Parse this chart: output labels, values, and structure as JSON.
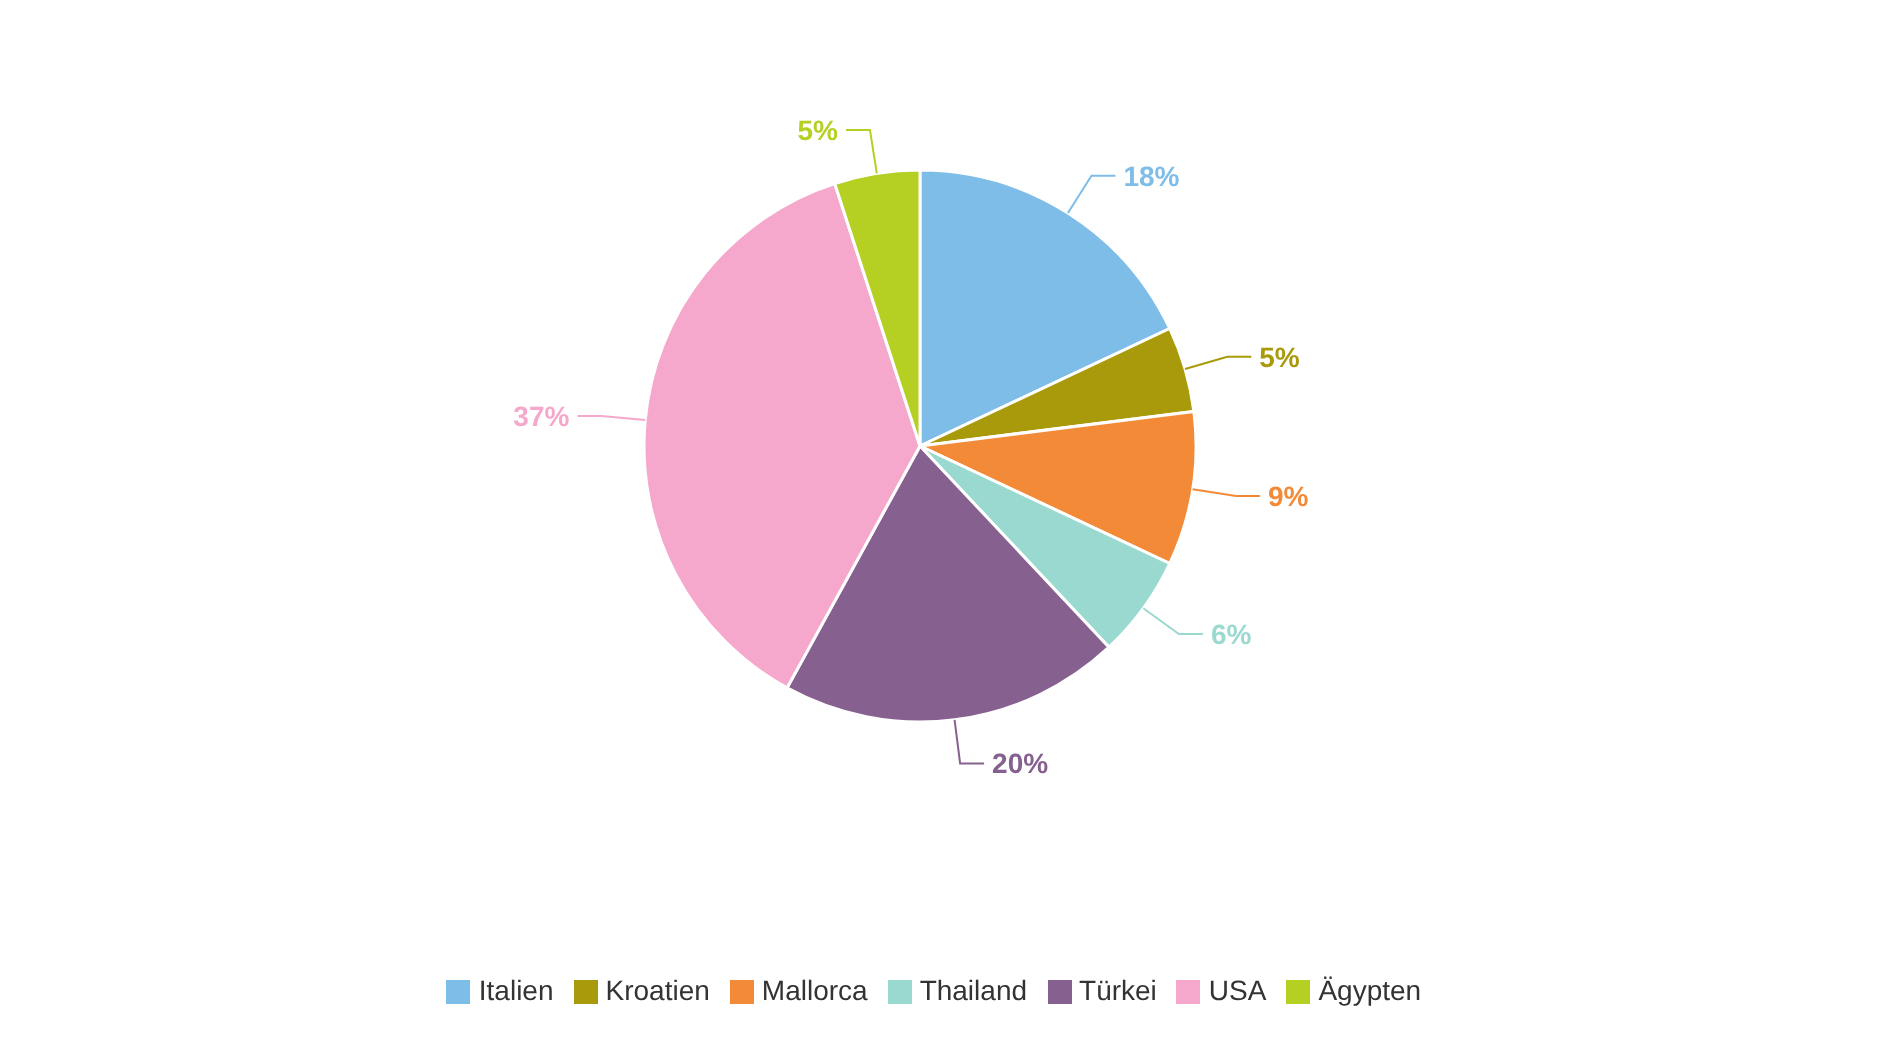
{
  "chart_data": {
    "type": "pie",
    "categories": [
      "Italien",
      "Kroatien",
      "Mallorca",
      "Thailand",
      "Türkei",
      "USA",
      "Ägypten"
    ],
    "values": [
      18,
      5,
      9,
      6,
      20,
      37,
      5
    ],
    "value_labels": [
      "18%",
      "5%",
      "9%",
      "6%",
      "20%",
      "37%",
      "5%"
    ],
    "colors": [
      "#7dbde8",
      "#a89a0a",
      "#f28a38",
      "#9ad9cf",
      "#86608e",
      "#f5a8cc",
      "#b5cf22"
    ],
    "legend": "bottom"
  }
}
